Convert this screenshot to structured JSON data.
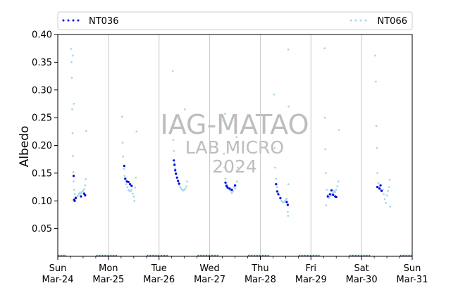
{
  "chart_data": {
    "type": "scatter",
    "ylabel": "Albedo",
    "xlabel": "",
    "ylim": [
      0.0,
      0.4
    ],
    "xlim": [
      "2024-03-24",
      "2024-03-31"
    ],
    "grid": "vertical at day boundaries",
    "legend_placement": "top, spanning",
    "y_ticks": [
      "0.05",
      "0.10",
      "0.15",
      "0.20",
      "0.25",
      "0.30",
      "0.35",
      "0.40"
    ],
    "x_ticks": [
      {
        "top": "Sun",
        "bottom": "Mar-24"
      },
      {
        "top": "Mon",
        "bottom": "Mar-25"
      },
      {
        "top": "Tue",
        "bottom": "Mar-26"
      },
      {
        "top": "Wed",
        "bottom": "Mar-27"
      },
      {
        "top": "Thu",
        "bottom": "Mar-28"
      },
      {
        "top": "Fri",
        "bottom": "Mar-29"
      },
      {
        "top": "Sat",
        "bottom": "Mar-30"
      },
      {
        "top": "Sun",
        "bottom": "Mar-31"
      }
    ],
    "watermark": [
      "IAG-MATAO",
      "LAB MICRO",
      "2024"
    ],
    "series": [
      {
        "name": "NT036",
        "color": "#0000dd",
        "points": [
          [
            "2024-03-24T07:30",
            0.145
          ],
          [
            "2024-03-24T07:45",
            0.102
          ],
          [
            "2024-03-24T08:00",
            0.1
          ],
          [
            "2024-03-24T08:30",
            0.105
          ],
          [
            "2024-03-24T11:00",
            0.108
          ],
          [
            "2024-03-24T12:30",
            0.113
          ],
          [
            "2024-03-24T13:00",
            0.11
          ],
          [
            "2024-03-25T07:30",
            0.163
          ],
          [
            "2024-03-25T08:00",
            0.14
          ],
          [
            "2024-03-25T08:45",
            0.135
          ],
          [
            "2024-03-25T09:30",
            0.134
          ],
          [
            "2024-03-25T10:15",
            0.13
          ],
          [
            "2024-03-25T11:00",
            0.127
          ],
          [
            "2024-03-26T07:00",
            0.173
          ],
          [
            "2024-03-26T07:20",
            0.165
          ],
          [
            "2024-03-26T07:40",
            0.155
          ],
          [
            "2024-03-26T08:00",
            0.149
          ],
          [
            "2024-03-26T08:30",
            0.142
          ],
          [
            "2024-03-26T09:00",
            0.136
          ],
          [
            "2024-03-26T09:30",
            0.131
          ],
          [
            "2024-03-27T07:30",
            0.133
          ],
          [
            "2024-03-27T08:00",
            0.127
          ],
          [
            "2024-03-27T08:30",
            0.124
          ],
          [
            "2024-03-27T09:30",
            0.122
          ],
          [
            "2024-03-27T10:30",
            0.12
          ],
          [
            "2024-03-27T12:00",
            0.128
          ],
          [
            "2024-03-28T07:30",
            0.13
          ],
          [
            "2024-03-28T08:00",
            0.117
          ],
          [
            "2024-03-28T08:30",
            0.112
          ],
          [
            "2024-03-28T09:30",
            0.105
          ],
          [
            "2024-03-28T12:30",
            0.098
          ],
          [
            "2024-03-28T13:00",
            0.093
          ],
          [
            "2024-03-29T08:00",
            0.108
          ],
          [
            "2024-03-29T09:00",
            0.112
          ],
          [
            "2024-03-29T09:45",
            0.119
          ],
          [
            "2024-03-29T10:30",
            0.111
          ],
          [
            "2024-03-29T11:30",
            0.108
          ],
          [
            "2024-03-29T12:00",
            0.107
          ],
          [
            "2024-03-30T07:30",
            0.125
          ],
          [
            "2024-03-30T08:30",
            0.122
          ],
          [
            "2024-03-30T09:00",
            0.128
          ],
          [
            "2024-03-30T09:30",
            0.118
          ]
        ]
      },
      {
        "name": "NT066",
        "color": "#a7d8ea",
        "points": [
          [
            "2024-03-24T06:20",
            0.374
          ],
          [
            "2024-03-24T06:30",
            0.35
          ],
          [
            "2024-03-24T06:40",
            0.322
          ],
          [
            "2024-03-24T06:50",
            0.265
          ],
          [
            "2024-03-24T07:00",
            0.222
          ],
          [
            "2024-03-24T07:10",
            0.181
          ],
          [
            "2024-03-24T07:20",
            0.152
          ],
          [
            "2024-03-24T07:30",
            0.135
          ],
          [
            "2024-03-24T07:45",
            0.12
          ],
          [
            "2024-03-24T08:00",
            0.112
          ],
          [
            "2024-03-24T08:30",
            0.108
          ],
          [
            "2024-03-24T09:00",
            0.106
          ],
          [
            "2024-03-24T09:30",
            0.109
          ],
          [
            "2024-03-24T10:00",
            0.112
          ],
          [
            "2024-03-24T10:30",
            0.115
          ],
          [
            "2024-03-24T11:00",
            0.113
          ],
          [
            "2024-03-24T11:30",
            0.116
          ],
          [
            "2024-03-24T12:00",
            0.118
          ],
          [
            "2024-03-24T12:30",
            0.121
          ],
          [
            "2024-03-24T13:00",
            0.128
          ],
          [
            "2024-03-24T13:15",
            0.139
          ],
          [
            "2024-03-24T13:30",
            0.226
          ],
          [
            "2024-03-24T07:35",
            0.275
          ],
          [
            "2024-03-24T07:05",
            0.362
          ],
          [
            "2024-03-25T06:30",
            0.252
          ],
          [
            "2024-03-25T06:45",
            0.205
          ],
          [
            "2024-03-25T07:00",
            0.18
          ],
          [
            "2024-03-25T07:20",
            0.158
          ],
          [
            "2024-03-25T07:40",
            0.145
          ],
          [
            "2024-03-25T08:00",
            0.138
          ],
          [
            "2024-03-25T08:30",
            0.13
          ],
          [
            "2024-03-25T09:00",
            0.125
          ],
          [
            "2024-03-25T09:30",
            0.12
          ],
          [
            "2024-03-25T10:00",
            0.118
          ],
          [
            "2024-03-25T10:30",
            0.117
          ],
          [
            "2024-03-25T11:00",
            0.12
          ],
          [
            "2024-03-25T11:30",
            0.113
          ],
          [
            "2024-03-25T12:00",
            0.108
          ],
          [
            "2024-03-25T12:20",
            0.1
          ],
          [
            "2024-03-25T12:40",
            0.124
          ],
          [
            "2024-03-25T13:00",
            0.142
          ],
          [
            "2024-03-25T13:20",
            0.225
          ],
          [
            "2024-03-26T06:30",
            0.334
          ],
          [
            "2024-03-26T06:45",
            0.21
          ],
          [
            "2024-03-26T07:00",
            0.19
          ],
          [
            "2024-03-26T07:20",
            0.168
          ],
          [
            "2024-03-26T07:40",
            0.158
          ],
          [
            "2024-03-26T08:00",
            0.15
          ],
          [
            "2024-03-26T08:30",
            0.142
          ],
          [
            "2024-03-26T09:00",
            0.135
          ],
          [
            "2024-03-26T09:30",
            0.129
          ],
          [
            "2024-03-26T10:00",
            0.125
          ],
          [
            "2024-03-26T10:30",
            0.122
          ],
          [
            "2024-03-26T11:00",
            0.12
          ],
          [
            "2024-03-26T11:30",
            0.119
          ],
          [
            "2024-03-26T12:00",
            0.12
          ],
          [
            "2024-03-26T12:30",
            0.122
          ],
          [
            "2024-03-26T13:00",
            0.126
          ],
          [
            "2024-03-26T13:20",
            0.135
          ],
          [
            "2024-03-26T12:15",
            0.265
          ],
          [
            "2024-03-27T06:30",
            0.245
          ],
          [
            "2024-03-27T06:45",
            0.185
          ],
          [
            "2024-03-27T07:00",
            0.16
          ],
          [
            "2024-03-27T07:30",
            0.14
          ],
          [
            "2024-03-27T08:00",
            0.13
          ],
          [
            "2024-03-27T08:30",
            0.125
          ],
          [
            "2024-03-27T09:00",
            0.122
          ],
          [
            "2024-03-27T09:30",
            0.12
          ],
          [
            "2024-03-27T10:00",
            0.118
          ],
          [
            "2024-03-27T10:30",
            0.114
          ],
          [
            "2024-03-27T11:00",
            0.117
          ],
          [
            "2024-03-27T11:30",
            0.125
          ],
          [
            "2024-03-27T12:00",
            0.122
          ],
          [
            "2024-03-27T12:30",
            0.127
          ],
          [
            "2024-03-27T13:00",
            0.135
          ],
          [
            "2024-03-27T13:20",
            0.16
          ],
          [
            "2024-03-27T12:45",
            0.215
          ],
          [
            "2024-03-27T07:15",
            0.257
          ],
          [
            "2024-03-28T06:30",
            0.292
          ],
          [
            "2024-03-28T06:45",
            0.195
          ],
          [
            "2024-03-28T07:00",
            0.16
          ],
          [
            "2024-03-28T07:30",
            0.14
          ],
          [
            "2024-03-28T08:00",
            0.125
          ],
          [
            "2024-03-28T08:30",
            0.115
          ],
          [
            "2024-03-28T09:00",
            0.11
          ],
          [
            "2024-03-28T09:30",
            0.104
          ],
          [
            "2024-03-28T10:00",
            0.1
          ],
          [
            "2024-03-28T10:30",
            0.098
          ],
          [
            "2024-03-28T11:00",
            0.097
          ],
          [
            "2024-03-28T11:30",
            0.099
          ],
          [
            "2024-03-28T12:00",
            0.102
          ],
          [
            "2024-03-28T12:30",
            0.104
          ],
          [
            "2024-03-28T12:50",
            0.092
          ],
          [
            "2024-03-28T13:00",
            0.08
          ],
          [
            "2024-03-28T13:10",
            0.073
          ],
          [
            "2024-03-28T13:20",
            0.13
          ],
          [
            "2024-03-28T13:25",
            0.27
          ],
          [
            "2024-03-28T13:15",
            0.373
          ],
          [
            "2024-03-29T06:30",
            0.375
          ],
          [
            "2024-03-29T06:40",
            0.25
          ],
          [
            "2024-03-29T06:50",
            0.193
          ],
          [
            "2024-03-29T07:00",
            0.15
          ],
          [
            "2024-03-29T07:30",
            0.12
          ],
          [
            "2024-03-29T08:00",
            0.11
          ],
          [
            "2024-03-29T08:30",
            0.105
          ],
          [
            "2024-03-29T09:00",
            0.108
          ],
          [
            "2024-03-29T09:30",
            0.11
          ],
          [
            "2024-03-29T10:00",
            0.112
          ],
          [
            "2024-03-29T10:30",
            0.115
          ],
          [
            "2024-03-29T11:00",
            0.118
          ],
          [
            "2024-03-29T11:30",
            0.116
          ],
          [
            "2024-03-29T12:00",
            0.12
          ],
          [
            "2024-03-29T12:30",
            0.126
          ],
          [
            "2024-03-29T13:00",
            0.135
          ],
          [
            "2024-03-29T13:15",
            0.228
          ],
          [
            "2024-03-29T07:15",
            0.092
          ],
          [
            "2024-03-30T06:30",
            0.362
          ],
          [
            "2024-03-30T06:45",
            0.315
          ],
          [
            "2024-03-30T07:00",
            0.235
          ],
          [
            "2024-03-30T07:15",
            0.195
          ],
          [
            "2024-03-30T07:30",
            0.15
          ],
          [
            "2024-03-30T08:00",
            0.132
          ],
          [
            "2024-03-30T08:30",
            0.125
          ],
          [
            "2024-03-30T09:00",
            0.12
          ],
          [
            "2024-03-30T09:30",
            0.118
          ],
          [
            "2024-03-30T10:00",
            0.12
          ],
          [
            "2024-03-30T10:30",
            0.112
          ],
          [
            "2024-03-30T11:00",
            0.103
          ],
          [
            "2024-03-30T11:30",
            0.096
          ],
          [
            "2024-03-30T12:00",
            0.11
          ],
          [
            "2024-03-30T12:30",
            0.118
          ],
          [
            "2024-03-30T13:00",
            0.125
          ],
          [
            "2024-03-30T13:20",
            0.138
          ],
          [
            "2024-03-30T13:30",
            0.09
          ]
        ],
        "night_values_at": 0.0
      }
    ]
  }
}
